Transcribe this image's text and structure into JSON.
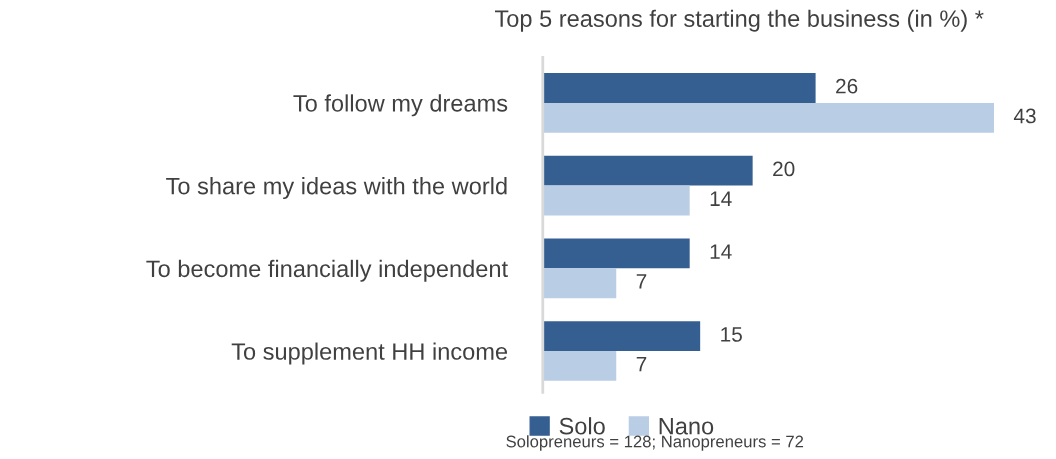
{
  "chart_data": {
    "type": "bar",
    "orientation": "horizontal",
    "title": "Top 5 reasons for starting the business (in %) *",
    "categories": [
      "To follow my dreams",
      "To share my ideas with the world",
      "To become financially independent",
      "To supplement HH income"
    ],
    "series": [
      {
        "name": "Solo",
        "color": "#365f91",
        "values": [
          26,
          20,
          14,
          15
        ]
      },
      {
        "name": "Nano",
        "color": "#b9cde5",
        "values": [
          43,
          14,
          7,
          7
        ]
      }
    ],
    "data_labels": true,
    "legend": "bottom",
    "tick_labels": "y",
    "grid": false,
    "annotations": [
      "Solopreneurs = 128; Nanopreneurs = 72"
    ]
  }
}
